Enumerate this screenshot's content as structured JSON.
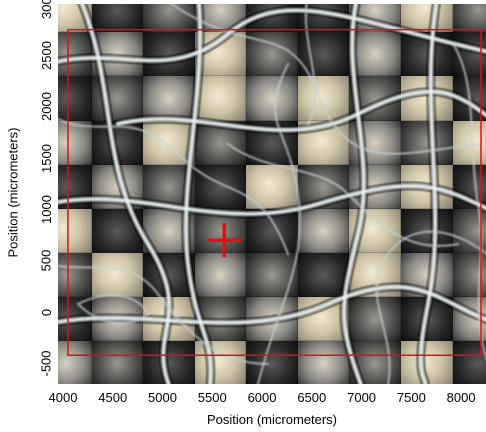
{
  "chart_data": {
    "type": "image-plot",
    "xlabel": "Position (micrometers)",
    "ylabel": "Position (micrometers)",
    "xlim": [
      3950,
      8250
    ],
    "ylim": [
      -700,
      3000
    ],
    "x_ticks": [
      4000,
      4500,
      5000,
      5500,
      6000,
      6500,
      7000,
      7500,
      8000
    ],
    "y_ticks": [
      -500,
      0,
      500,
      1000,
      1500,
      2000,
      2500,
      3000
    ],
    "selection_rectangle": {
      "x_min": 4050,
      "x_max": 8200,
      "y_min": -420,
      "y_max": 2750
    },
    "marker": {
      "type": "cross",
      "x": 5620,
      "y": 700
    },
    "overlay_color": "#e01010"
  },
  "ui": {
    "x_tick_labels": [
      "4000",
      "4500",
      "5000",
      "5500",
      "6000",
      "6500",
      "7000",
      "7500",
      "8000"
    ],
    "y_tick_labels": [
      "-500",
      "0",
      "500",
      "1000",
      "1500",
      "2000",
      "2500",
      "3000"
    ]
  }
}
